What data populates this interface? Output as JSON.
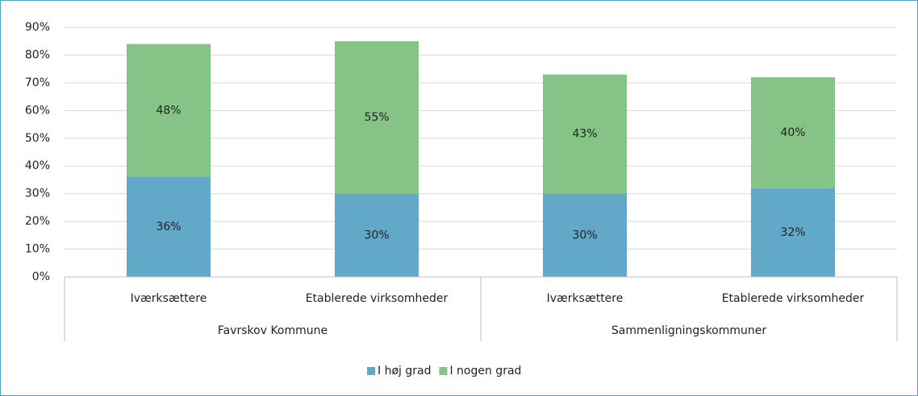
{
  "chart_data": {
    "type": "stacked-bar",
    "categories": [
      "Iværksættere",
      "Etablerede virksomheder",
      "Iværksættere",
      "Etablerede virksomheder"
    ],
    "groups": [
      "Favrskov Kommune",
      "Sammenligningskommuner"
    ],
    "series": [
      {
        "name": "I høj grad",
        "color": "#62a8c9",
        "values": [
          36,
          30,
          30,
          32
        ],
        "value_labels": [
          "36%",
          "30%",
          "30%",
          "32%"
        ]
      },
      {
        "name": "I nogen grad",
        "color": "#85c486",
        "values": [
          48,
          55,
          43,
          40
        ],
        "value_labels": [
          "48%",
          "55%",
          "43%",
          "40%"
        ]
      }
    ],
    "ylim": [
      0,
      90
    ],
    "yticks": [
      {
        "value": 0,
        "label": "0%"
      },
      {
        "value": 10,
        "label": "10%"
      },
      {
        "value": 20,
        "label": "20%"
      },
      {
        "value": 30,
        "label": "30%"
      },
      {
        "value": 40,
        "label": "40%"
      },
      {
        "value": 50,
        "label": "50%"
      },
      {
        "value": 60,
        "label": "60%"
      },
      {
        "value": 70,
        "label": "70%"
      },
      {
        "value": 80,
        "label": "80%"
      },
      {
        "value": 90,
        "label": "90%"
      }
    ],
    "grid": true,
    "legend": "bottom"
  }
}
